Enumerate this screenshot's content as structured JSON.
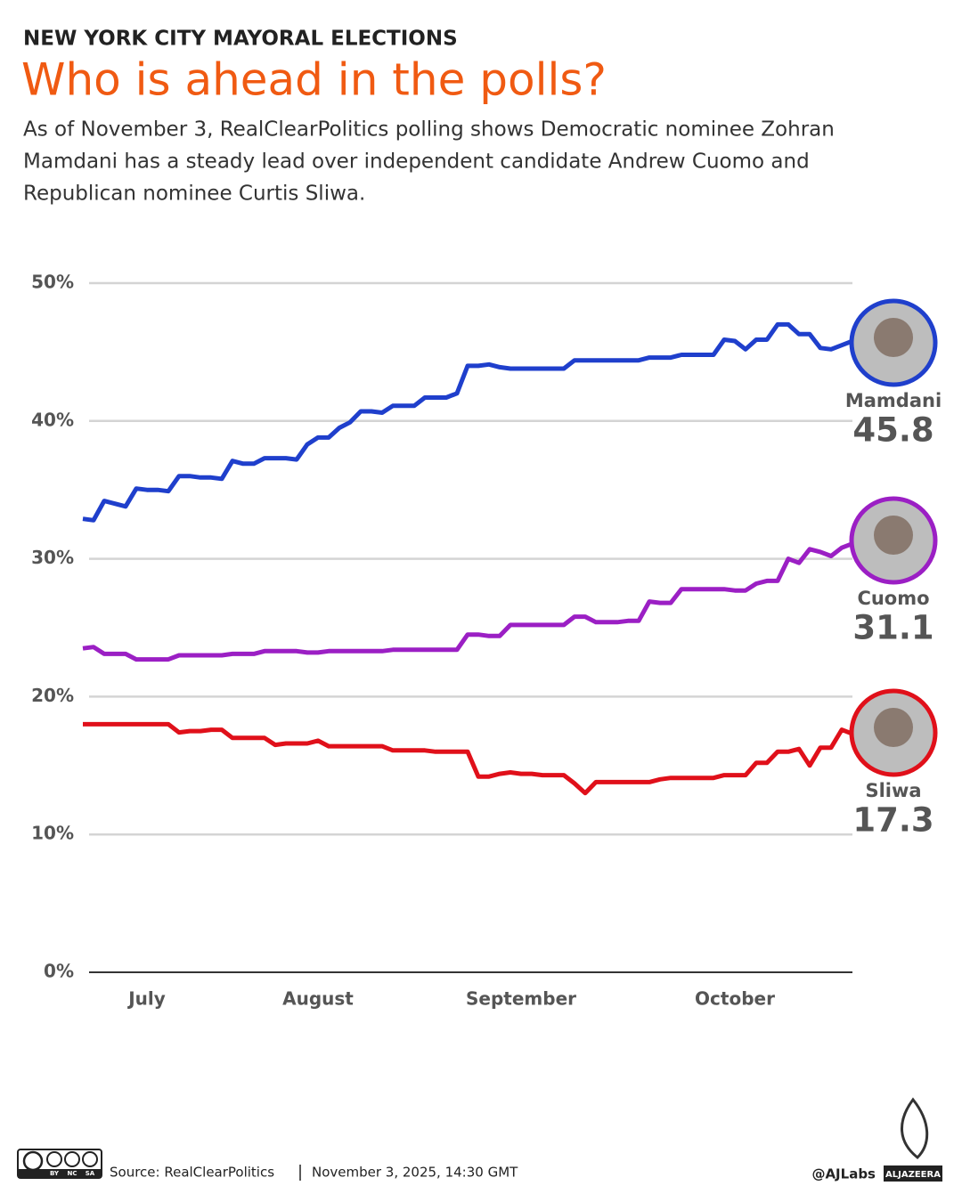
{
  "header": {
    "kicker": "NEW YORK CITY MAYORAL ELECTIONS",
    "title": "Who is ahead in the polls?",
    "description": [
      "As of November 3, RealClearPolitics polling shows Democratic nominee Zohran",
      "Mamdani has a steady lead over independent candidate Andrew Cuomo and",
      "Republican nominee Curtis Sliwa."
    ]
  },
  "chart_data": {
    "type": "line",
    "categories": [
      null,
      null,
      null,
      null,
      null,
      null,
      "July",
      null,
      null,
      null,
      null,
      null,
      null,
      null,
      null,
      null,
      null,
      null,
      null,
      null,
      null,
      null,
      "August",
      null,
      null,
      null,
      null,
      null,
      null,
      null,
      null,
      null,
      null,
      null,
      null,
      null,
      null,
      null,
      null,
      null,
      null,
      "September",
      null,
      null,
      null,
      null,
      null,
      null,
      null,
      null,
      null,
      null,
      null,
      null,
      null,
      null,
      null,
      null,
      null,
      null,
      null,
      "October",
      null,
      null,
      null,
      null,
      null,
      null,
      null,
      null,
      null,
      null,
      null
    ],
    "series": [
      {
        "name": "Mamdani",
        "color": "#1f3fcc",
        "values": [
          32.9,
          32.8,
          34.2,
          34.0,
          33.8,
          35.1,
          35.0,
          35.0,
          34.9,
          36.0,
          36.0,
          35.9,
          35.9,
          35.8,
          37.1,
          36.9,
          36.9,
          37.3,
          37.3,
          37.3,
          37.2,
          38.3,
          38.8,
          38.8,
          39.5,
          39.9,
          40.7,
          40.7,
          40.6,
          41.1,
          41.1,
          41.1,
          41.7,
          41.7,
          41.7,
          42.0,
          44.0,
          44.0,
          44.1,
          43.9,
          43.8,
          43.8,
          43.8,
          43.8,
          43.8,
          43.8,
          44.4,
          44.4,
          44.4,
          44.4,
          44.4,
          44.4,
          44.4,
          44.6,
          44.6,
          44.6,
          44.8,
          44.8,
          44.8,
          44.8,
          45.9,
          45.8,
          45.2,
          45.9,
          45.9,
          47.0,
          47.0,
          46.3,
          46.3,
          45.3,
          45.2,
          45.5,
          45.8
        ]
      },
      {
        "name": "Cuomo",
        "color": "#9b1fc4",
        "values": [
          23.5,
          23.6,
          23.1,
          23.1,
          23.1,
          22.7,
          22.7,
          22.7,
          22.7,
          23.0,
          23.0,
          23.0,
          23.0,
          23.0,
          23.1,
          23.1,
          23.1,
          23.3,
          23.3,
          23.3,
          23.3,
          23.2,
          23.2,
          23.3,
          23.3,
          23.3,
          23.3,
          23.3,
          23.3,
          23.4,
          23.4,
          23.4,
          23.4,
          23.4,
          23.4,
          23.4,
          24.5,
          24.5,
          24.4,
          24.4,
          25.2,
          25.2,
          25.2,
          25.2,
          25.2,
          25.2,
          25.8,
          25.8,
          25.4,
          25.4,
          25.4,
          25.5,
          25.5,
          26.9,
          26.8,
          26.8,
          27.8,
          27.8,
          27.8,
          27.8,
          27.8,
          27.7,
          27.7,
          28.2,
          28.4,
          28.4,
          30.0,
          29.7,
          30.7,
          30.5,
          30.2,
          30.8,
          31.1
        ]
      },
      {
        "name": "Sliwa",
        "color": "#e0101a",
        "values": [
          18.0,
          18.0,
          18.0,
          18.0,
          18.0,
          18.0,
          18.0,
          18.0,
          18.0,
          17.4,
          17.5,
          17.5,
          17.6,
          17.6,
          17.0,
          17.0,
          17.0,
          17.0,
          16.5,
          16.6,
          16.6,
          16.6,
          16.8,
          16.4,
          16.4,
          16.4,
          16.4,
          16.4,
          16.4,
          16.1,
          16.1,
          16.1,
          16.1,
          16.0,
          16.0,
          16.0,
          16.0,
          14.2,
          14.2,
          14.4,
          14.5,
          14.4,
          14.4,
          14.3,
          14.3,
          14.3,
          13.7,
          13.0,
          13.8,
          13.8,
          13.8,
          13.8,
          13.8,
          13.8,
          14.0,
          14.1,
          14.1,
          14.1,
          14.1,
          14.1,
          14.3,
          14.3,
          14.3,
          15.2,
          15.2,
          16.0,
          16.0,
          16.2,
          15.0,
          16.3,
          16.3,
          17.6,
          17.3
        ]
      }
    ],
    "ylim": [
      0,
      50
    ],
    "yticks": [
      {
        "value": 0,
        "label": "0%"
      },
      {
        "value": 10,
        "label": "10%"
      },
      {
        "value": 20,
        "label": "20%"
      },
      {
        "value": 30,
        "label": "30%"
      },
      {
        "value": 40,
        "label": "40%"
      },
      {
        "value": 50,
        "label": "50%"
      }
    ],
    "grid": true
  },
  "footer": {
    "license": [
      "BY",
      "NC",
      "SA"
    ],
    "source": "Source: RealClearPolitics",
    "date": "November 3, 2025, 14:30 GMT",
    "credit": "@AJLabs",
    "brand": "ALJAZEERA"
  }
}
